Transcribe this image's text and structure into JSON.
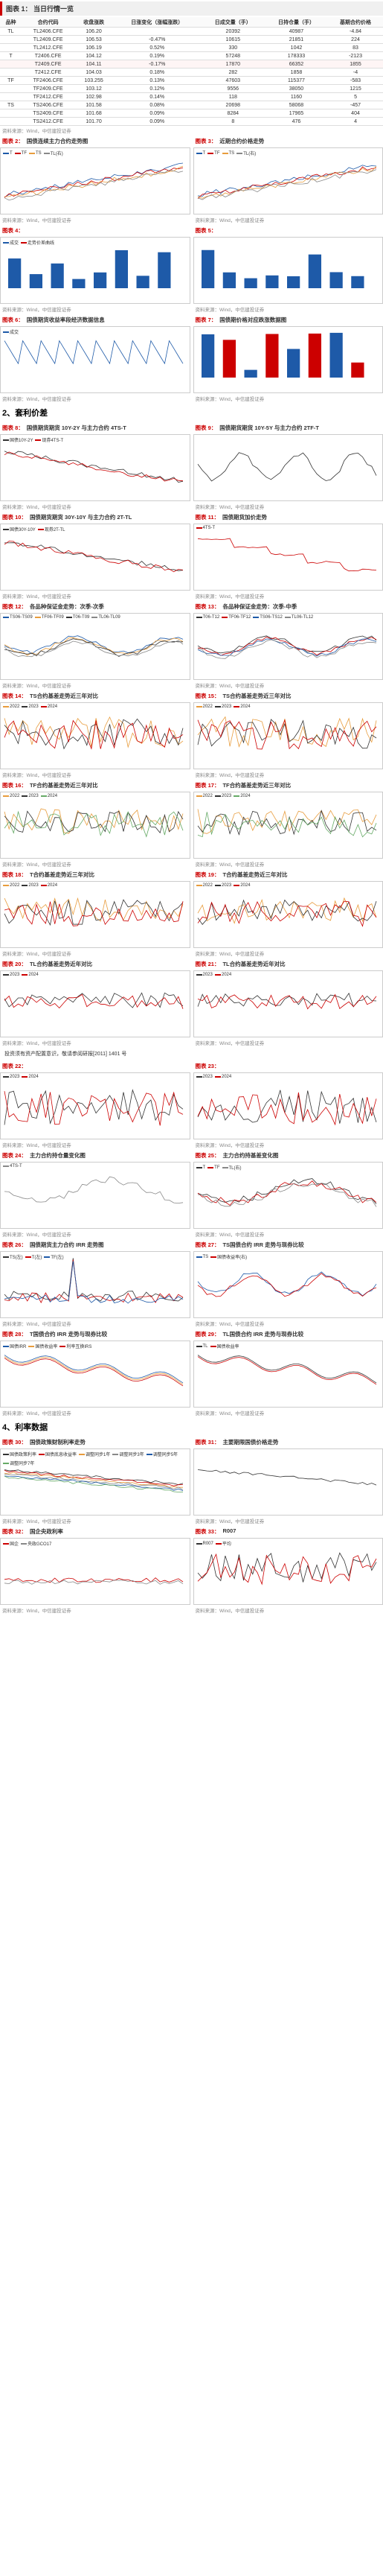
{
  "table1": {
    "title_num": "图表 1：",
    "title_text": "当日行情一览",
    "columns": [
      "品种",
      "合约代码",
      "收盘涨跌",
      "日涨变化（涨幅涨跌）",
      "日成交量（手）",
      "日持仓量（手）",
      "基期合约价格"
    ],
    "rows": [
      [
        "TL",
        "TL2406.CFE",
        "106.20",
        "",
        "20392",
        "40987",
        "-4.84"
      ],
      [
        "",
        "TL2409.CFE",
        "106.53",
        "-0.47%",
        "10615",
        "21851",
        "224"
      ],
      [
        "",
        "TL2412.CFE",
        "106.19",
        "0.52%",
        "330",
        "1042",
        "83"
      ],
      [
        "T",
        "T2406.CFE",
        "104.12",
        "0.19%",
        "57248",
        "178333",
        "-2123"
      ],
      [
        "hl",
        "T2409.CFE",
        "104.11",
        "-0.17%",
        "17870",
        "66352",
        "1855"
      ],
      [
        "",
        "T2412.CFE",
        "104.03",
        "0.18%",
        "282",
        "1858",
        "-4"
      ],
      [
        "TF",
        "TF2406.CFE",
        "103.255",
        "0.13%",
        "47603",
        "115377",
        "-583"
      ],
      [
        "",
        "TF2409.CFE",
        "103.12",
        "0.12%",
        "9556",
        "38050",
        "1215"
      ],
      [
        "",
        "TF2412.CFE",
        "102.98",
        "0.14%",
        "118",
        "1160",
        "5"
      ],
      [
        "TS",
        "TS2406.CFE",
        "101.58",
        "0.08%",
        "20698",
        "58068",
        "-457"
      ],
      [
        "",
        "TS2409.CFE",
        "101.68",
        "0.09%",
        "8284",
        "17965",
        "404"
      ],
      [
        "",
        "TS2412.CFE",
        "101.70",
        "0.09%",
        "8",
        "476",
        "4"
      ]
    ],
    "source": "资料来源：Wind，中信建投证券"
  },
  "charts": [
    {
      "n": "2",
      "t": "国债连续主力合约走势图",
      "legend": [
        [
          "T",
          "#1e5aa8"
        ],
        [
          "TF",
          "#c00"
        ],
        [
          "TS",
          "#e89c3c"
        ],
        [
          "TL(右)",
          "#888"
        ]
      ],
      "pattern": "rise"
    },
    {
      "n": "3",
      "t": "近期合约价格走势",
      "legend": [
        [
          "T",
          "#1e5aa8"
        ],
        [
          "TF",
          "#c00"
        ],
        [
          "TS",
          "#e89c3c"
        ],
        [
          "TL(右)",
          "#888"
        ]
      ],
      "pattern": "rise"
    },
    {
      "n": "4",
      "t": "",
      "legend": [
        [
          "成交",
          "#1e5aa8"
        ],
        [
          "走势价差曲线",
          "#c00"
        ]
      ],
      "pattern": "bars"
    },
    {
      "n": "5",
      "t": "",
      "legend": [],
      "pattern": "bars_blue"
    },
    {
      "n": "6",
      "t": "国债期货收益率段经济数据信息",
      "legend": [
        [
          "成交",
          "#1e5aa8"
        ]
      ],
      "pattern": "zigzag"
    },
    {
      "n": "7",
      "t": "国债期价格对应跌涨数据图",
      "legend": [],
      "pattern": "bars_mix"
    },
    {
      "n": "8",
      "t": "国债期货期货 10Y-2Y 与主力合约 4TS-T",
      "legend": [
        [
          "国债10Y-2Y",
          "#333"
        ],
        [
          "现券4TS-T",
          "#c00"
        ]
      ],
      "pattern": "decline_dual"
    },
    {
      "n": "9",
      "t": "国债期货期货 10Y-5Y 与主力合约 2TF-T",
      "legend": [],
      "pattern": "volatile_dual"
    },
    {
      "n": "10",
      "t": "国债期货期货 30Y-10Y 与主力合约 2T-TL",
      "legend": [
        [
          "国债30Y-10Y",
          "#333"
        ],
        [
          "现券2T-TL",
          "#c00"
        ]
      ],
      "pattern": "decline_dual"
    },
    {
      "n": "11",
      "t": "国债期货加价走势",
      "legend": [
        [
          "4TS-T",
          "#c00"
        ]
      ],
      "pattern": "step_down"
    },
    {
      "n": "12",
      "t": "各品种保证金走势：次季-次季",
      "legend": [
        [
          "TS06-TS09",
          "#1e5aa8"
        ],
        [
          "TF06-TF09",
          "#e89c3c"
        ],
        [
          "T06-T09",
          "#333"
        ],
        [
          "TL06-TL09",
          "#888"
        ]
      ],
      "pattern": "multi_flat"
    },
    {
      "n": "13",
      "t": "各品种保证金走势：次季-中季",
      "legend": [
        [
          "T06-T12",
          "#333"
        ],
        [
          "TF06-TF12",
          "#c00"
        ],
        [
          "TS06-TS12",
          "#1e5aa8"
        ],
        [
          "TL06-TL12",
          "#888"
        ]
      ],
      "pattern": "multi_flat"
    },
    {
      "n": "14",
      "t": "TS合约基差走势近三年对比",
      "legend": [
        [
          "2022",
          "#e89c3c"
        ],
        [
          "2023",
          "#333"
        ],
        [
          "2024",
          "#c00"
        ]
      ],
      "pattern": "spiky"
    },
    {
      "n": "15",
      "t": "TS合约基差走势近三年对比",
      "legend": [
        [
          "2022",
          "#e89c3c"
        ],
        [
          "2023",
          "#333"
        ],
        [
          "2024",
          "#c00"
        ]
      ],
      "pattern": "spiky"
    },
    {
      "n": "16",
      "t": "TF合约基差走势近三年对比",
      "legend": [
        [
          "2022",
          "#e89c3c"
        ],
        [
          "2023",
          "#333"
        ],
        [
          "2024",
          "#6a6"
        ]
      ],
      "pattern": "noisy"
    },
    {
      "n": "17",
      "t": "TF合约基差走势近三年对比",
      "legend": [
        [
          "2022",
          "#e89c3c"
        ],
        [
          "2023",
          "#333"
        ],
        [
          "2024",
          "#6a6"
        ]
      ],
      "pattern": "noisy"
    },
    {
      "n": "18",
      "t": "T合约基差走势近三年对比",
      "legend": [
        [
          "2022",
          "#e89c3c"
        ],
        [
          "2023",
          "#333"
        ],
        [
          "2024",
          "#c00"
        ]
      ],
      "pattern": "noisy"
    },
    {
      "n": "19",
      "t": "T合约基差走势近三年对比",
      "legend": [
        [
          "2022",
          "#e89c3c"
        ],
        [
          "2023",
          "#333"
        ],
        [
          "2024",
          "#c00"
        ]
      ],
      "pattern": "noisy"
    },
    {
      "n": "20",
      "t": "TL合约基差走势近年对比",
      "legend": [
        [
          "2023",
          "#333"
        ],
        [
          "2024",
          "#c00"
        ]
      ],
      "pattern": "sparse"
    },
    {
      "n": "21",
      "t": "TL合约基差走势近年对比",
      "legend": [
        [
          "2023",
          "#333"
        ],
        [
          "2024",
          "#c00"
        ]
      ],
      "pattern": "sparse"
    },
    {
      "n": "22",
      "t": "",
      "legend": [
        [
          "2023",
          "#333"
        ],
        [
          "2024",
          "#c00"
        ]
      ],
      "pattern": "spiky_red"
    },
    {
      "n": "23",
      "t": "",
      "legend": [
        [
          "2023",
          "#333"
        ],
        [
          "2024",
          "#c00"
        ]
      ],
      "pattern": "spiky_red"
    },
    {
      "n": "24",
      "t": "主力合约持仓量变化图",
      "legend": [
        [
          "4TS-T",
          "#888"
        ]
      ],
      "pattern": "wander"
    },
    {
      "n": "25",
      "t": "主力合约持基差变化图",
      "legend": [
        [
          "T",
          "#333"
        ],
        [
          "TF",
          "#c00"
        ],
        [
          "TL(右)",
          "#888"
        ]
      ],
      "pattern": "wander"
    },
    {
      "n": "26",
      "t": "国债期货主力合约 IRR 走势图",
      "legend": [
        [
          "TS(左)",
          "#333"
        ],
        [
          "T(左)",
          "#c00"
        ],
        [
          "TF(左)",
          "#1e5aa8"
        ]
      ],
      "pattern": "spike_tall"
    },
    {
      "n": "27",
      "t": "TS国债合约 IRR 走势与现券比较",
      "legend": [
        [
          "TS",
          "#1e5aa8"
        ],
        [
          "国债收益率(右)",
          "#c00"
        ]
      ],
      "pattern": "overlay"
    },
    {
      "n": "28",
      "t": "T国债合约 IRR 走势与现券比较",
      "legend": [
        [
          "国债IRR",
          "#1e5aa8"
        ],
        [
          "国债收益率",
          "#e89c3c"
        ],
        [
          "利率互换IRS",
          "#c00"
        ]
      ],
      "pattern": "multi_down"
    },
    {
      "n": "29",
      "t": "TL国债合约 IRR 走势与现券比较",
      "legend": [
        [
          "TL",
          "#333"
        ],
        [
          "国债收益率",
          "#c00"
        ]
      ],
      "pattern": "multi_down"
    },
    {
      "n": "30",
      "t": "国债政策财制利率走势",
      "legend": [
        [
          "国债政策利率",
          "#333"
        ],
        [
          "国债底息收益率",
          "#c00"
        ],
        [
          "调整同步1年",
          "#e89c3c"
        ],
        [
          "调整同步3年",
          "#888"
        ],
        [
          "调整同步5年",
          "#1e5aa8"
        ],
        [
          "调整同步7年",
          "#6a6"
        ]
      ],
      "pattern": "bands"
    },
    {
      "n": "31",
      "t": "主要期限国债价格走势",
      "legend": [],
      "pattern": "bands"
    },
    {
      "n": "32",
      "t": "国企央政利率",
      "legend": [
        [
          "国企",
          "#c00"
        ],
        [
          "央政GCO17",
          "#888"
        ]
      ],
      "pattern": "flat_low"
    },
    {
      "n": "33",
      "t": "R007",
      "legend": [
        [
          "R007",
          "#333"
        ],
        [
          "平均",
          "#c00"
        ]
      ],
      "pattern": "jagged"
    }
  ],
  "section2_title": "2、套利价差",
  "section4_title": "4、利率数据",
  "disclaimer": "投资须有资产配置意识，敬请参阅研报[2011] 1401 号",
  "source_text": "资料来源：Wind，中信建投证券"
}
